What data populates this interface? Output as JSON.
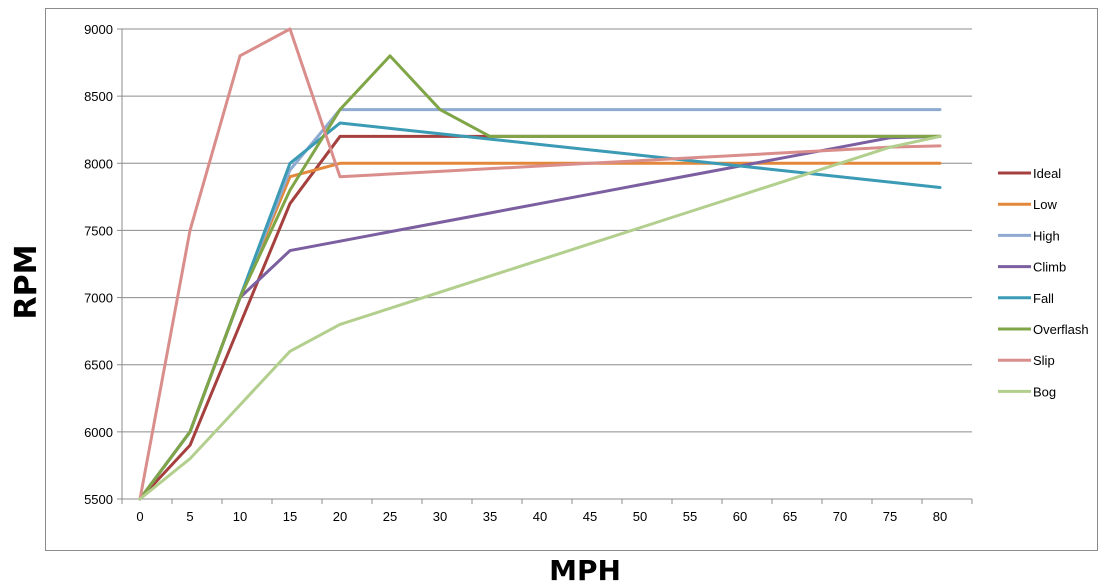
{
  "chart_data": {
    "type": "line",
    "title": "",
    "xlabel": "MPH",
    "ylabel": "RPM",
    "x": [
      0,
      5,
      10,
      15,
      20,
      25,
      30,
      35,
      40,
      45,
      50,
      55,
      60,
      65,
      70,
      75,
      80
    ],
    "x_ticks": [
      "0",
      "5",
      "10",
      "15",
      "20",
      "25",
      "30",
      "35",
      "40",
      "45",
      "50",
      "55",
      "60",
      "65",
      "70",
      "75",
      "80"
    ],
    "ylim": [
      5500,
      9000
    ],
    "y_ticks": [
      "5500",
      "6000",
      "6500",
      "7000",
      "7500",
      "8000",
      "8500",
      "9000"
    ],
    "grid": "horizontal",
    "legend_position": "right",
    "series": [
      {
        "name": "Ideal",
        "color": "#a5403e",
        "values": [
          5500,
          5900,
          6800,
          7700,
          8200,
          8200,
          8200,
          8200,
          8200,
          8200,
          8200,
          8200,
          8200,
          8200,
          8200,
          8200,
          8200
        ]
      },
      {
        "name": "Low",
        "color": "#e3873b",
        "values": [
          5500,
          6000,
          7000,
          7900,
          8000,
          8000,
          8000,
          8000,
          8000,
          8000,
          8000,
          8000,
          8000,
          8000,
          8000,
          8000,
          8000
        ]
      },
      {
        "name": "High",
        "color": "#8faad1",
        "values": [
          5500,
          6000,
          7000,
          7950,
          8400,
          8400,
          8400,
          8400,
          8400,
          8400,
          8400,
          8400,
          8400,
          8400,
          8400,
          8400,
          8400
        ]
      },
      {
        "name": "Climb",
        "color": "#7b5fa0",
        "values": [
          5500,
          6000,
          7000,
          7350,
          7420,
          7490,
          7560,
          7630,
          7700,
          7770,
          7840,
          7910,
          7980,
          8050,
          8120,
          8190,
          8200
        ]
      },
      {
        "name": "Fall",
        "color": "#3b9bb5",
        "values": [
          5500,
          6000,
          7000,
          8000,
          8300,
          8260,
          8220,
          8180,
          8140,
          8100,
          8060,
          8020,
          7980,
          7940,
          7900,
          7860,
          7820
        ]
      },
      {
        "name": "Overflash",
        "color": "#80a547",
        "values": [
          5500,
          6000,
          7000,
          7800,
          8400,
          8800,
          8400,
          8200,
          8200,
          8200,
          8200,
          8200,
          8200,
          8200,
          8200,
          8200,
          8200
        ]
      },
      {
        "name": "Slip",
        "color": "#d98e8c",
        "values": [
          5500,
          7500,
          8800,
          9000,
          7900,
          7920,
          7940,
          7960,
          7980,
          8000,
          8020,
          8040,
          8060,
          8080,
          8100,
          8120,
          8130
        ]
      },
      {
        "name": "Bog",
        "color": "#b3cf8e",
        "values": [
          5500,
          5800,
          6200,
          6600,
          6800,
          6920,
          7040,
          7160,
          7280,
          7400,
          7520,
          7640,
          7760,
          7880,
          8000,
          8120,
          8200
        ]
      }
    ]
  }
}
